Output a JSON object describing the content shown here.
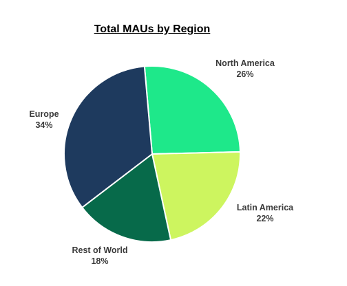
{
  "chart_data": {
    "type": "pie",
    "title": "Total MAUs by Region",
    "slices": [
      {
        "label": "North America",
        "value": 26,
        "value_label": "26%",
        "color": "#1ee88a"
      },
      {
        "label": "Latin America",
        "value": 22,
        "value_label": "22%",
        "color": "#cdf55f"
      },
      {
        "label": "Rest of World",
        "value": 18,
        "value_label": "18%",
        "color": "#076a4a"
      },
      {
        "label": "Europe",
        "value": 34,
        "value_label": "34%",
        "color": "#1e3a5e"
      }
    ],
    "slice_border_color": "#ffffff"
  }
}
